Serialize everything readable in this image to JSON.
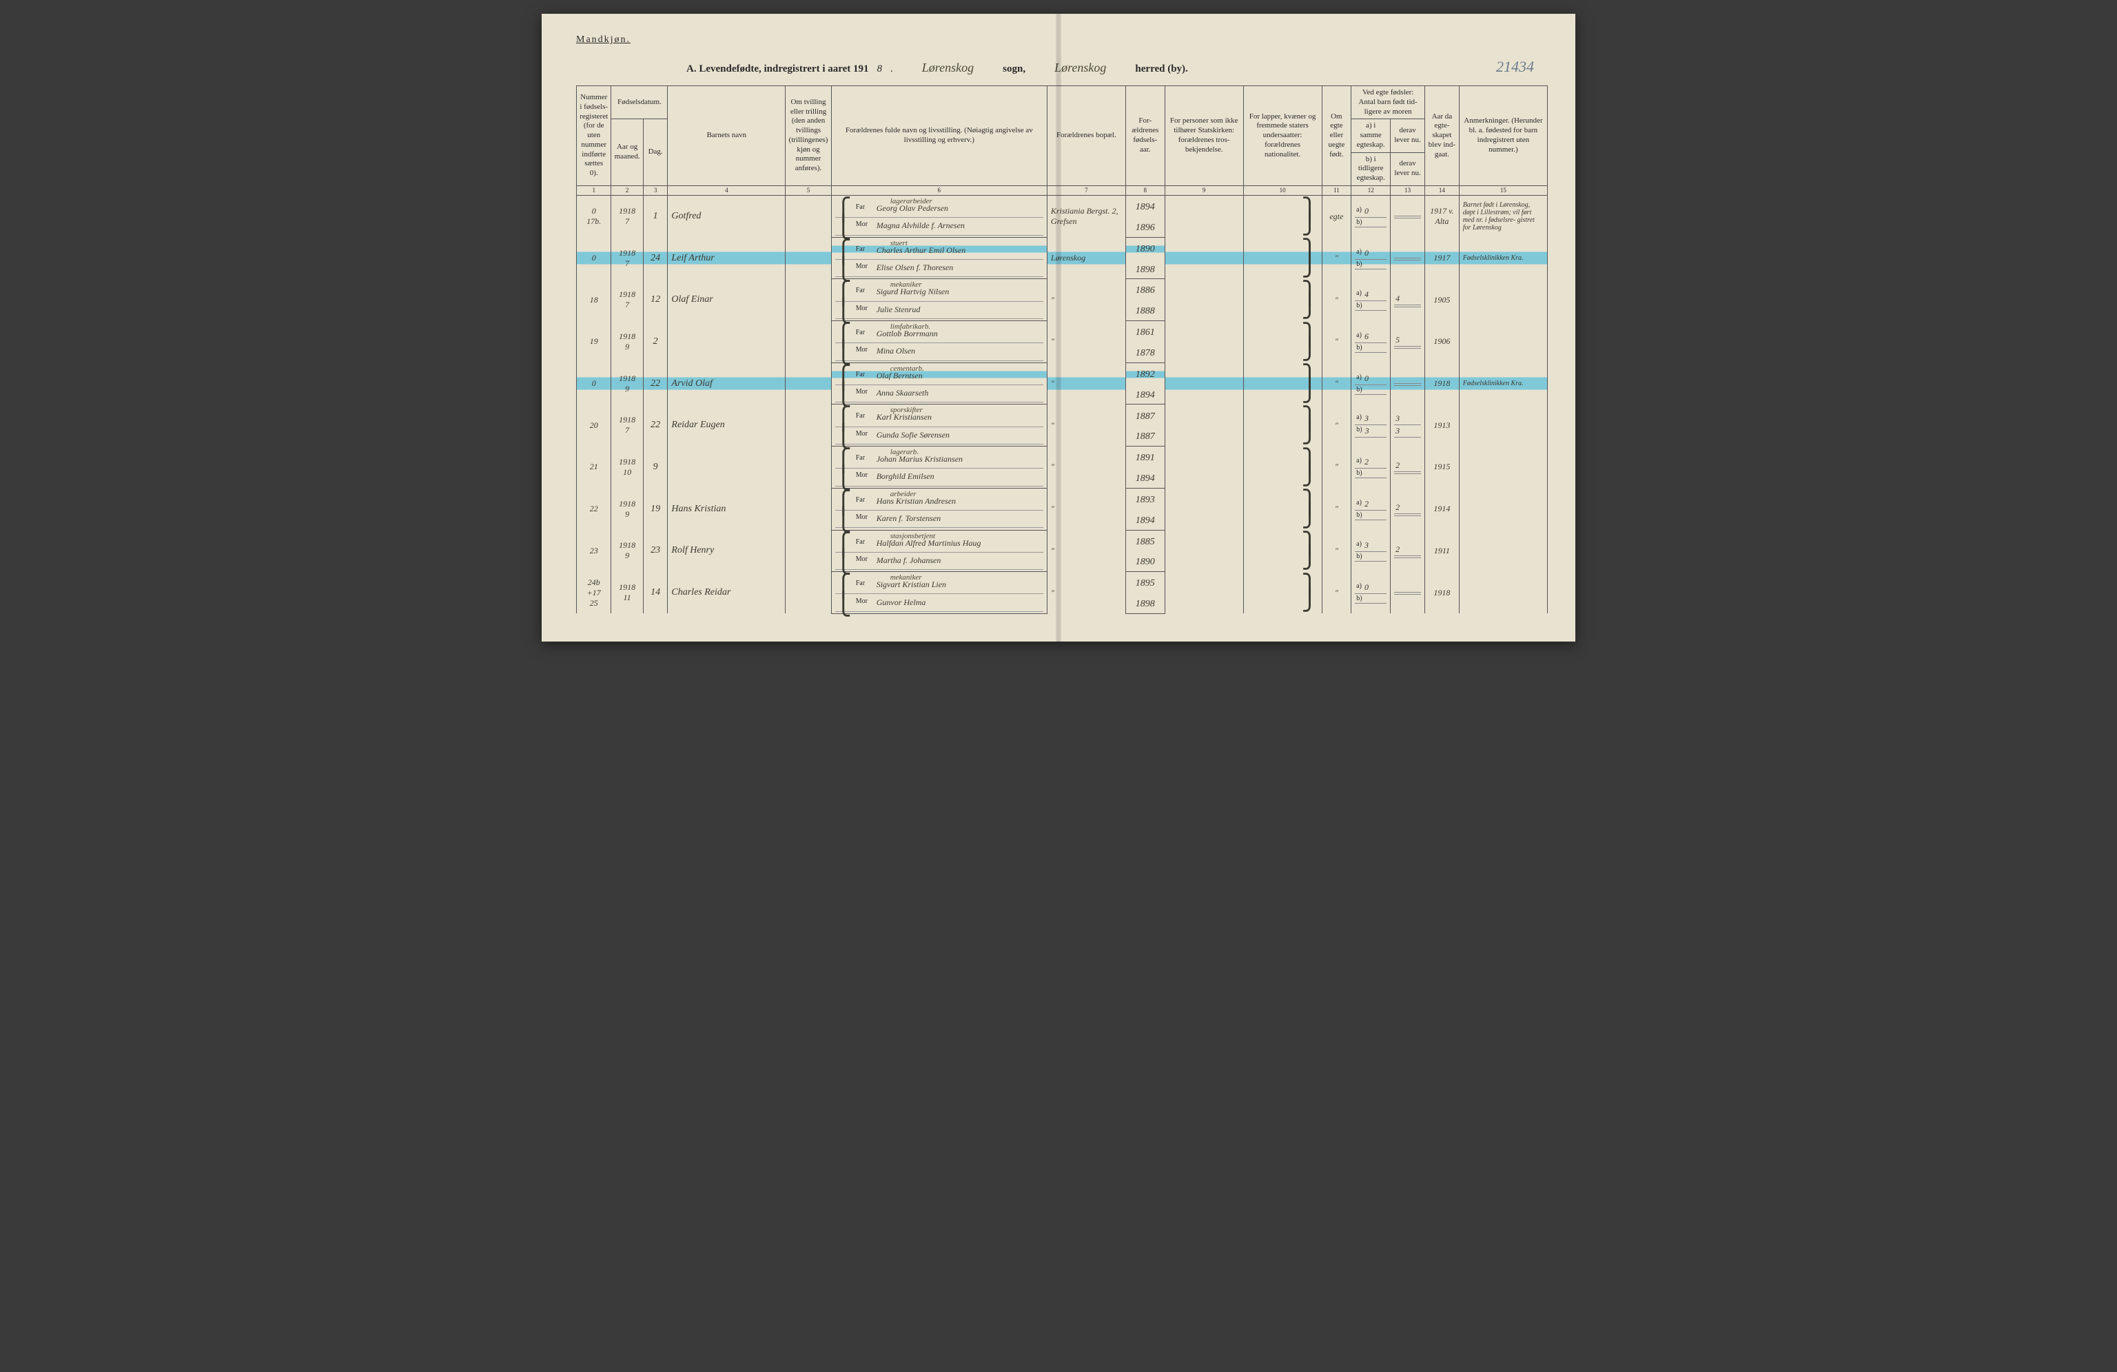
{
  "header": {
    "gender_label": "Mandkjøn.",
    "title_prefix": "A. Levendefødte, indregistrert i aaret 191",
    "year_suffix": "8",
    "sogn_name": "Lørenskog",
    "sogn_label": "sogn,",
    "herred_name": "Lørenskog",
    "herred_label": "herred (by).",
    "page_annotation": "21434"
  },
  "columns": {
    "c1": "Nummer i fødsels- registeret (for de uten nummer indførte sættes 0).",
    "c2a": "Fødselsdatum.",
    "c2_aar": "Aar og maaned.",
    "c2_dag": "Dag.",
    "c4": "Barnets navn",
    "c5": "Om tvilling eller trilling (den anden tvillings (trillingenes) kjøn og nummer anføres).",
    "c6": "Forældrenes fulde navn og livsstilling. (Nøiagtig angivelse av livsstilling og erhverv.)",
    "c7": "Forældrenes bopæl.",
    "c8": "For- ældrenes fødsels- aar.",
    "c9": "For personer som ikke tilhører Statskirken: forældrenes tros- bekjendelse.",
    "c10": "For lapper, kvæner og fremmede staters undersaatter: forældrenes nationalitet.",
    "c11": "Om egte eller uegte født.",
    "c12top": "Ved egte fødsler: Antal barn født tid- ligere av moren",
    "c12a": "a) i samme egteskap.",
    "c12b": "b) i tidligere egteskap.",
    "c13a": "derav lever nu.",
    "c13b": "derav lever nu.",
    "c14": "Aar da egte- skapet blev ind- gaat.",
    "c15": "Anmerkninger. (Herunder bl. a. fødested for barn indregistrert uten nummer.)",
    "nums": [
      "1",
      "2",
      "3",
      "4",
      "5",
      "6",
      "7",
      "8",
      "9",
      "10",
      "11",
      "12",
      "13",
      "14",
      "15"
    ]
  },
  "rows": [
    {
      "num": "0\n17b.",
      "ym": "1918\n7",
      "day": "1",
      "child": "Gotfred",
      "occ": "lagerarbeider",
      "far": "Georg Olav Pedersen",
      "mor": "Magna Alvhilde f. Arnesen",
      "bopael": "Kristiania Bergst. 2, Grefsen",
      "fy_far": "1894",
      "fy_mor": "1896",
      "egte": "egte",
      "a": "0",
      "b": "",
      "lev_a": "",
      "lev_b": "",
      "aar": "1917 v. Alta",
      "rem": "Barnet født i Lørenskog, døpt i Lillestrøm; vil ført med nr. i fødselsre- gistret for Lørenskog"
    },
    {
      "num": "0",
      "ym": "1918\n7",
      "day": "24",
      "child": "Leif Arthur",
      "hl": true,
      "occ": "stuert",
      "far": "Charles Arthur Emil Olsen",
      "mor": "Elise Olsen f. Thoresen",
      "bopael": "Lørenskog",
      "fy_far": "1890",
      "fy_mor": "1898",
      "egte": "\"",
      "a": "0",
      "b": "",
      "lev_a": "",
      "lev_b": "",
      "aar": "1917",
      "rem": "Fødselsklinikken Kra."
    },
    {
      "num": "18",
      "ym": "1918\n7",
      "day": "12",
      "child": "Olaf Einar",
      "occ": "mekaniker",
      "far": "Sigurd Hartvig Nilsen",
      "mor": "Julie Stenrud",
      "bopael": "\"",
      "fy_far": "1886",
      "fy_mor": "1888",
      "egte": "\"",
      "a": "4",
      "b": "",
      "lev_a": "4",
      "lev_b": "",
      "aar": "1905",
      "rem": ""
    },
    {
      "num": "19",
      "ym": "1918\n9",
      "day": "2",
      "child": "",
      "occ": "limfabrikarb.",
      "far": "Gottlob Borrmann",
      "mor": "Mina Olsen",
      "bopael": "\"",
      "fy_far": "1861",
      "fy_mor": "1878",
      "egte": "\"",
      "a": "6",
      "b": "",
      "lev_a": "5",
      "lev_b": "",
      "aar": "1906",
      "rem": ""
    },
    {
      "num": "0",
      "ym": "1918\n9",
      "day": "22",
      "child": "Arvid Olaf",
      "hl": true,
      "occ": "cementarb.",
      "far": "Olaf Berntsen",
      "mor": "Anna Skaarseth",
      "bopael": "\"",
      "fy_far": "1892",
      "fy_mor": "1894",
      "egte": "\"",
      "a": "0",
      "b": "",
      "lev_a": "",
      "lev_b": "",
      "aar": "1918",
      "rem": "Fødselsklinikken Kra."
    },
    {
      "num": "20",
      "ym": "1918\n7",
      "day": "22",
      "child": "Reidar Eugen",
      "occ": "sporskifter",
      "far": "Karl Kristiansen",
      "mor": "Gunda Sofie Sørensen",
      "bopael": "\"",
      "fy_far": "1887",
      "fy_mor": "1887",
      "egte": "\"",
      "a": "3",
      "b": "3",
      "lev_a": "3",
      "lev_b": "3",
      "aar": "1913",
      "rem": ""
    },
    {
      "num": "21",
      "ym": "1918\n10",
      "day": "9",
      "child": "",
      "occ": "lagerarb.",
      "far": "Johan Marius Kristiansen",
      "mor": "Borghild Emilsen",
      "bopael": "\"",
      "fy_far": "1891",
      "fy_mor": "1894",
      "egte": "\"",
      "a": "2",
      "b": "",
      "lev_a": "2",
      "lev_b": "",
      "aar": "1915",
      "rem": ""
    },
    {
      "num": "22",
      "ym": "1918\n9",
      "day": "19",
      "child": "Hans Kristian",
      "occ": "arbeider",
      "far": "Hans Kristian Andresen",
      "mor": "Karen f. Torstensen",
      "bopael": "\"",
      "fy_far": "1893",
      "fy_mor": "1894",
      "egte": "\"",
      "a": "2",
      "b": "",
      "lev_a": "2",
      "lev_b": "",
      "aar": "1914",
      "rem": ""
    },
    {
      "num": "23",
      "ym": "1918\n9",
      "day": "23",
      "child": "Rolf Henry",
      "occ": "stasjonsbetjent",
      "far": "Halfdan Alfred Martinius Haug",
      "mor": "Martha f. Johansen",
      "bopael": "\"",
      "fy_far": "1885",
      "fy_mor": "1890",
      "egte": "\"",
      "a": "3",
      "b": "",
      "lev_a": "2",
      "lev_b": "",
      "aar": "1911",
      "rem": ""
    },
    {
      "num": "24b\n+17\n25",
      "ym": "1918\n11",
      "day": "14",
      "child": "Charles Reidar",
      "occ": "mekaniker",
      "far": "Sigvart Kristian Lien",
      "mor": "Gunvor Helma",
      "bopael": "\"",
      "fy_far": "1895",
      "fy_mor": "1898",
      "egte": "\"",
      "a": "0",
      "b": "",
      "lev_a": "",
      "lev_b": "",
      "aar": "1918",
      "rem": ""
    }
  ]
}
